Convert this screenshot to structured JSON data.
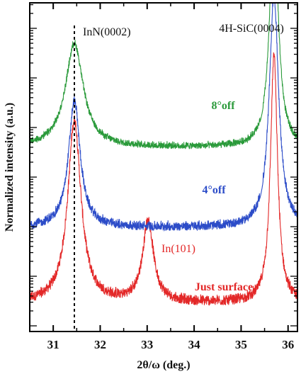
{
  "chart_data": {
    "type": "line",
    "xlabel": "2θ/ω (deg.)",
    "ylabel": "Normalized intensity (a.u.)",
    "xlim": [
      30.5,
      36.2
    ],
    "xticks": [
      31,
      32,
      33,
      34,
      35,
      36
    ],
    "y_scale": "log",
    "grid": false,
    "annotations": {
      "inn_peak": {
        "label": "InN(0002)",
        "x": 31.45
      },
      "sic_peak": {
        "label": "4H-SiC(0004)",
        "x": 35.7
      }
    },
    "series": [
      {
        "name": "8°off",
        "color": "#2a9a3a",
        "offset": 3.1,
        "noise": 0.12,
        "gap": [
          35.4,
          35.47
        ],
        "peaks": [
          {
            "x": 31.45,
            "height": 2.05,
            "width": 0.23
          },
          {
            "x": 35.7,
            "height": 4.5,
            "width": 0.11
          }
        ]
      },
      {
        "name": "4°off",
        "color": "#2c4cc8",
        "offset": 1.5,
        "noise": 0.16,
        "gap": [
          35.4,
          35.47
        ],
        "peaks": [
          {
            "x": 31.45,
            "height": 2.5,
            "width": 0.15
          },
          {
            "x": 35.7,
            "height": 4.6,
            "width": 0.12
          }
        ]
      },
      {
        "name": "Just surface",
        "color": "#e32828",
        "offset": 0.0,
        "noise": 0.18,
        "gap": null,
        "peaks": [
          {
            "x": 31.45,
            "height": 3.6,
            "width": 0.17
          },
          {
            "x": 33.02,
            "height": 1.6,
            "width": 0.14
          },
          {
            "x": 35.7,
            "height": 4.9,
            "width": 0.09
          }
        ]
      }
    ],
    "extra_labels": [
      {
        "name": "In(101)",
        "color": "#e32828"
      }
    ]
  }
}
